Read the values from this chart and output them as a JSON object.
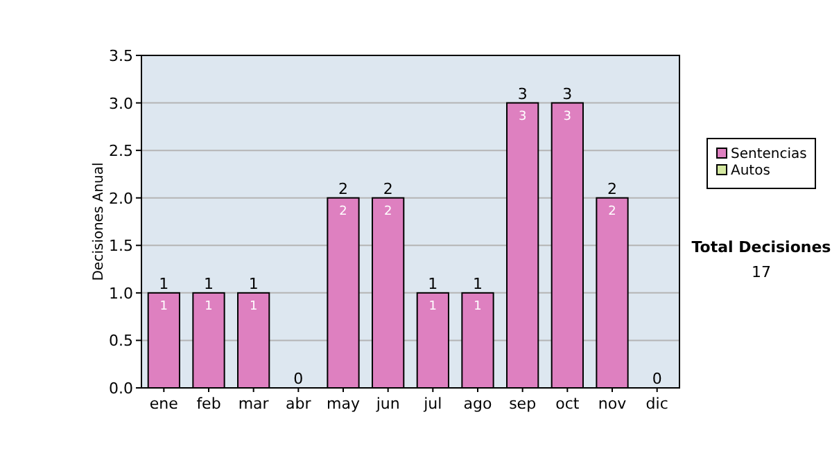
{
  "chart_data": {
    "type": "bar",
    "stacked": true,
    "ylabel": "Decisiones Anual",
    "categories": [
      "ene",
      "feb",
      "mar",
      "abr",
      "may",
      "jun",
      "jul",
      "ago",
      "sep",
      "oct",
      "nov",
      "dic"
    ],
    "series": [
      {
        "name": "Sentencias",
        "color": "#de80c0",
        "values": [
          1,
          1,
          1,
          0,
          2,
          2,
          1,
          1,
          3,
          3,
          2,
          0
        ],
        "value_labels": [
          "1",
          "1",
          "1",
          null,
          "2",
          "2",
          "1",
          "1",
          "3",
          "3",
          "2",
          null
        ]
      },
      {
        "name": "Autos",
        "color": "#d4e8a0",
        "values": [
          0,
          0,
          0,
          0,
          0,
          0,
          0,
          0,
          0,
          0,
          0,
          0
        ]
      }
    ],
    "totals": [
      "1",
      "1",
      "1",
      "0",
      "2",
      "2",
      "1",
      "1",
      "3",
      "3",
      "2",
      "0"
    ],
    "ylim": [
      0,
      3.5
    ],
    "yticks": [
      {
        "value": 0,
        "label": "0.0"
      },
      {
        "value": 0.5,
        "label": "0.5"
      },
      {
        "value": 1,
        "label": "1.0"
      },
      {
        "value": 1.5,
        "label": "1.5"
      },
      {
        "value": 2,
        "label": "2.0"
      },
      {
        "value": 2.5,
        "label": "2.5"
      },
      {
        "value": 3,
        "label": "3.0"
      },
      {
        "value": 3.5,
        "label": "3.5"
      }
    ],
    "grid": "y",
    "legend": "right",
    "annotations": [
      "Total Decisiones",
      "17"
    ]
  }
}
